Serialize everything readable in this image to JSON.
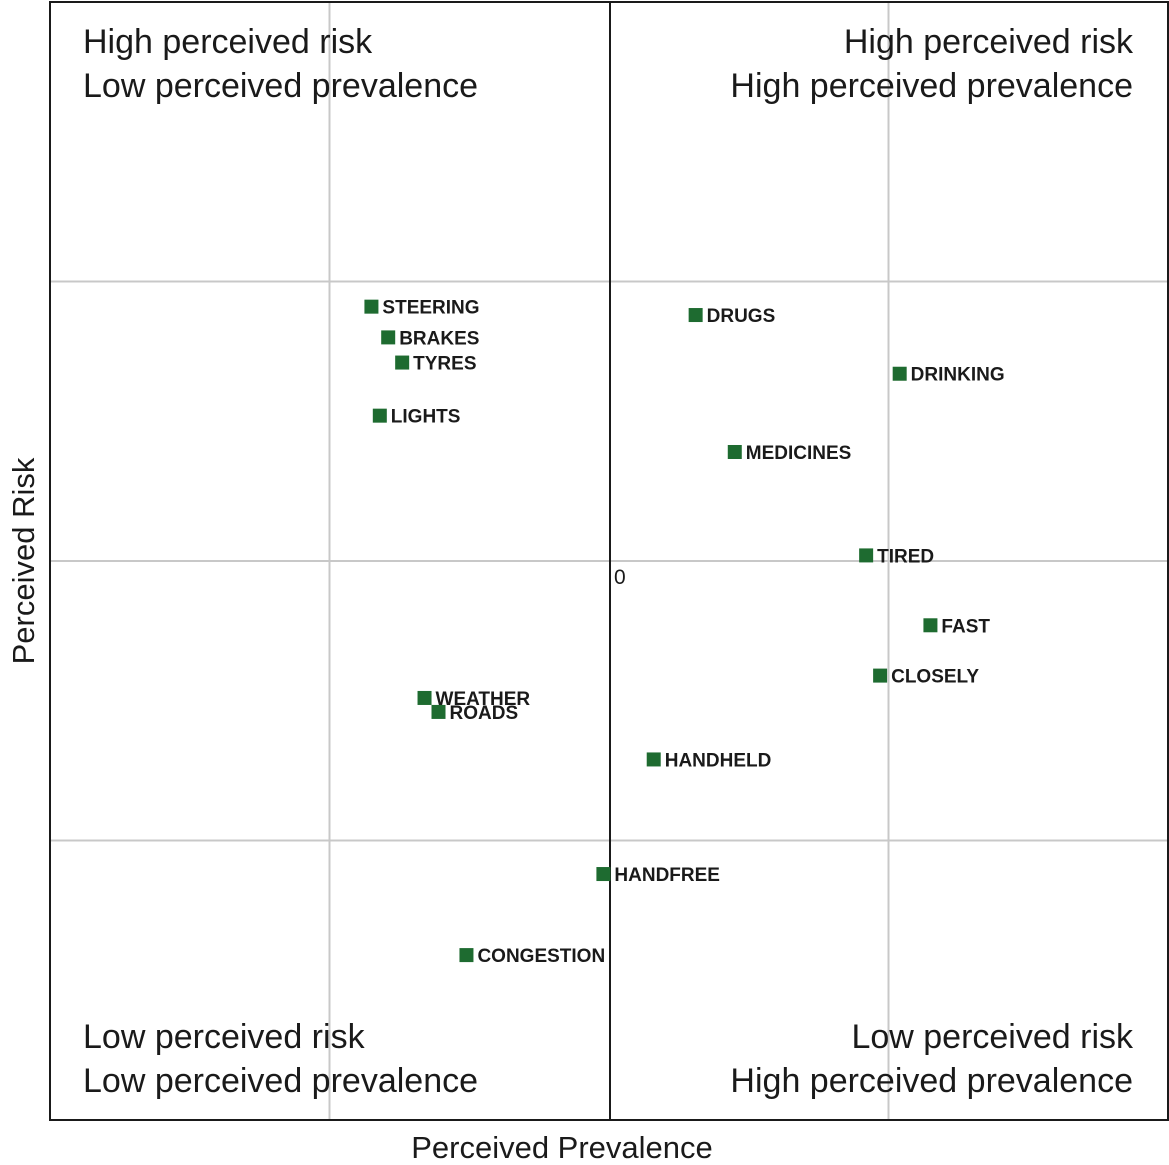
{
  "chart_data": {
    "type": "scatter",
    "xlabel": "Perceived Prevalence",
    "ylabel": "Perceived Risk",
    "xlim": [
      -2,
      2
    ],
    "ylim": [
      -2,
      2
    ],
    "origin_label": "0",
    "grid": true,
    "marker_color": "#1e6b30",
    "quadrants": {
      "top_left": [
        "High perceived risk",
        "Low perceived prevalence"
      ],
      "top_right": [
        "High perceived risk",
        "High perceived prevalence"
      ],
      "bottom_left": [
        "Low perceived risk",
        "Low perceived prevalence"
      ],
      "bottom_right": [
        "Low perceived risk",
        "High perceived prevalence"
      ]
    },
    "points": [
      {
        "label": "STEERING",
        "x": -0.85,
        "y": 0.91
      },
      {
        "label": "BRAKES",
        "x": -0.79,
        "y": 0.8
      },
      {
        "label": "TYRES",
        "x": -0.74,
        "y": 0.71
      },
      {
        "label": "LIGHTS",
        "x": -0.82,
        "y": 0.52
      },
      {
        "label": "DRUGS",
        "x": 0.31,
        "y": 0.88
      },
      {
        "label": "DRINKING",
        "x": 1.04,
        "y": 0.67
      },
      {
        "label": "MEDICINES",
        "x": 0.45,
        "y": 0.39
      },
      {
        "label": "TIRED",
        "x": 0.92,
        "y": 0.02
      },
      {
        "label": "FAST",
        "x": 1.15,
        "y": -0.23
      },
      {
        "label": "CLOSELY",
        "x": 0.97,
        "y": -0.41
      },
      {
        "label": "WEATHER",
        "x": -0.66,
        "y": -0.49
      },
      {
        "label": "ROADS",
        "x": -0.61,
        "y": -0.54
      },
      {
        "label": "HANDHELD",
        "x": 0.16,
        "y": -0.71
      },
      {
        "label": "HANDFREE",
        "x": -0.02,
        "y": -1.12
      },
      {
        "label": "CONGESTION",
        "x": -0.51,
        "y": -1.41
      }
    ]
  }
}
